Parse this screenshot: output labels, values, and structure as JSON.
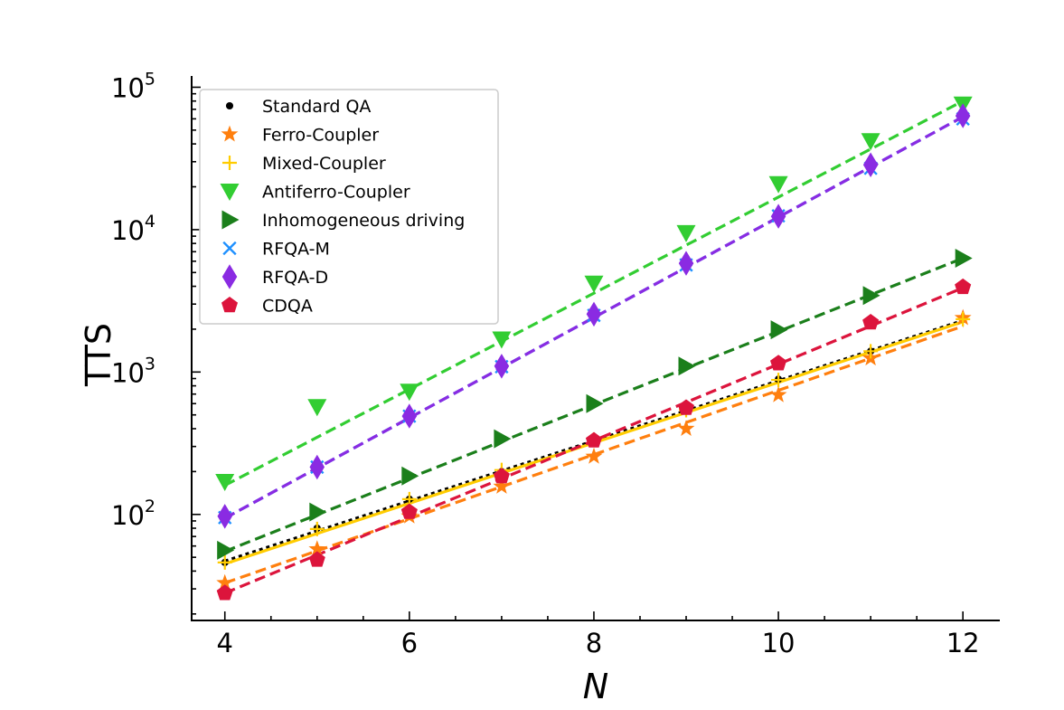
{
  "chart_data": {
    "type": "scatter",
    "title": "",
    "xlabel": "N",
    "ylabel": "TTS",
    "xlim": [
      3.64,
      12.4
    ],
    "ylim": [
      18,
      120000
    ],
    "yscale": "log",
    "x_ticks": [
      "4",
      "6",
      "8",
      "10",
      "12"
    ],
    "y_ticks": [
      {
        "base": "10",
        "exp": "2"
      },
      {
        "base": "10",
        "exp": "3"
      },
      {
        "base": "10",
        "exp": "4"
      },
      {
        "base": "10",
        "exp": "5"
      }
    ],
    "legend_position": "top-left",
    "grid": false,
    "series": [
      {
        "name": "Standard QA",
        "marker": "dot",
        "color": "#000000",
        "fit_style": "dotted",
        "x": [
          4,
          5,
          6,
          7,
          8,
          9,
          10,
          11,
          12
        ],
        "values": [
          46,
          80,
          128,
          200,
          330,
          540,
          890,
          1400,
          2350
        ],
        "fit": [
          4,
          47,
          12,
          2300
        ]
      },
      {
        "name": "Ferro-Coupler",
        "marker": "star",
        "color": "#ff7f0e",
        "fit_style": "dashed",
        "x": [
          4,
          5,
          6,
          7,
          8,
          9,
          10,
          11,
          12
        ],
        "values": [
          33,
          57,
          97,
          157,
          255,
          400,
          690,
          1250,
          2400
        ],
        "fit": [
          4,
          33,
          12,
          2100
        ]
      },
      {
        "name": "Mixed-Coupler",
        "marker": "plus",
        "color": "#ffcc00",
        "fit_style": "solid",
        "x": [
          4,
          5,
          6,
          7,
          8,
          9,
          10,
          11,
          12
        ],
        "values": [
          46,
          79,
          128,
          205,
          335,
          540,
          880,
          1400,
          2350
        ],
        "fit": [
          4,
          45,
          12,
          2250
        ]
      },
      {
        "name": "Antiferro-Coupler",
        "marker": "triangle-down",
        "color": "#32cd32",
        "fit_style": "dashed",
        "x": [
          4,
          5,
          6,
          7,
          8,
          9,
          10,
          11,
          12
        ],
        "values": [
          170,
          570,
          730,
          1700,
          4200,
          9500,
          21000,
          42000,
          76000
        ],
        "fit": [
          4,
          160,
          12,
          80000
        ]
      },
      {
        "name": "Inhomogeneous driving",
        "marker": "triangle-right",
        "color": "#1b7f1b",
        "fit_style": "dashed",
        "x": [
          4,
          5,
          6,
          7,
          8,
          9,
          10,
          11,
          12
        ],
        "values": [
          56,
          104,
          186,
          340,
          600,
          1100,
          1980,
          3450,
          6300
        ],
        "fit": [
          4,
          55,
          12,
          6300
        ]
      },
      {
        "name": "RFQA-M",
        "marker": "x",
        "color": "#1e90ff",
        "fit_style": "dashed",
        "x": [
          4,
          5,
          6,
          7,
          8,
          9,
          10,
          11,
          12
        ],
        "values": [
          95,
          215,
          490,
          1090,
          2500,
          5650,
          12500,
          27000,
          60000
        ],
        "fit": [
          4,
          94,
          12,
          62000
        ]
      },
      {
        "name": "RFQA-D",
        "marker": "diamond",
        "color": "#8a2be2",
        "fit_style": "dashed",
        "x": [
          4,
          5,
          6,
          7,
          8,
          9,
          10,
          11,
          12
        ],
        "values": [
          97,
          215,
          490,
          1100,
          2550,
          5800,
          12400,
          28500,
          63000
        ],
        "fit": [
          4,
          94,
          12,
          62000
        ]
      },
      {
        "name": "CDQA",
        "marker": "pentagon",
        "color": "#dc143c",
        "fit_style": "dashed",
        "x": [
          4,
          5,
          6,
          7,
          8,
          9,
          10,
          11,
          12
        ],
        "values": [
          28,
          48,
          104,
          185,
          330,
          560,
          1150,
          2230,
          3950
        ],
        "fit": [
          4,
          28,
          12,
          3900
        ]
      }
    ]
  }
}
